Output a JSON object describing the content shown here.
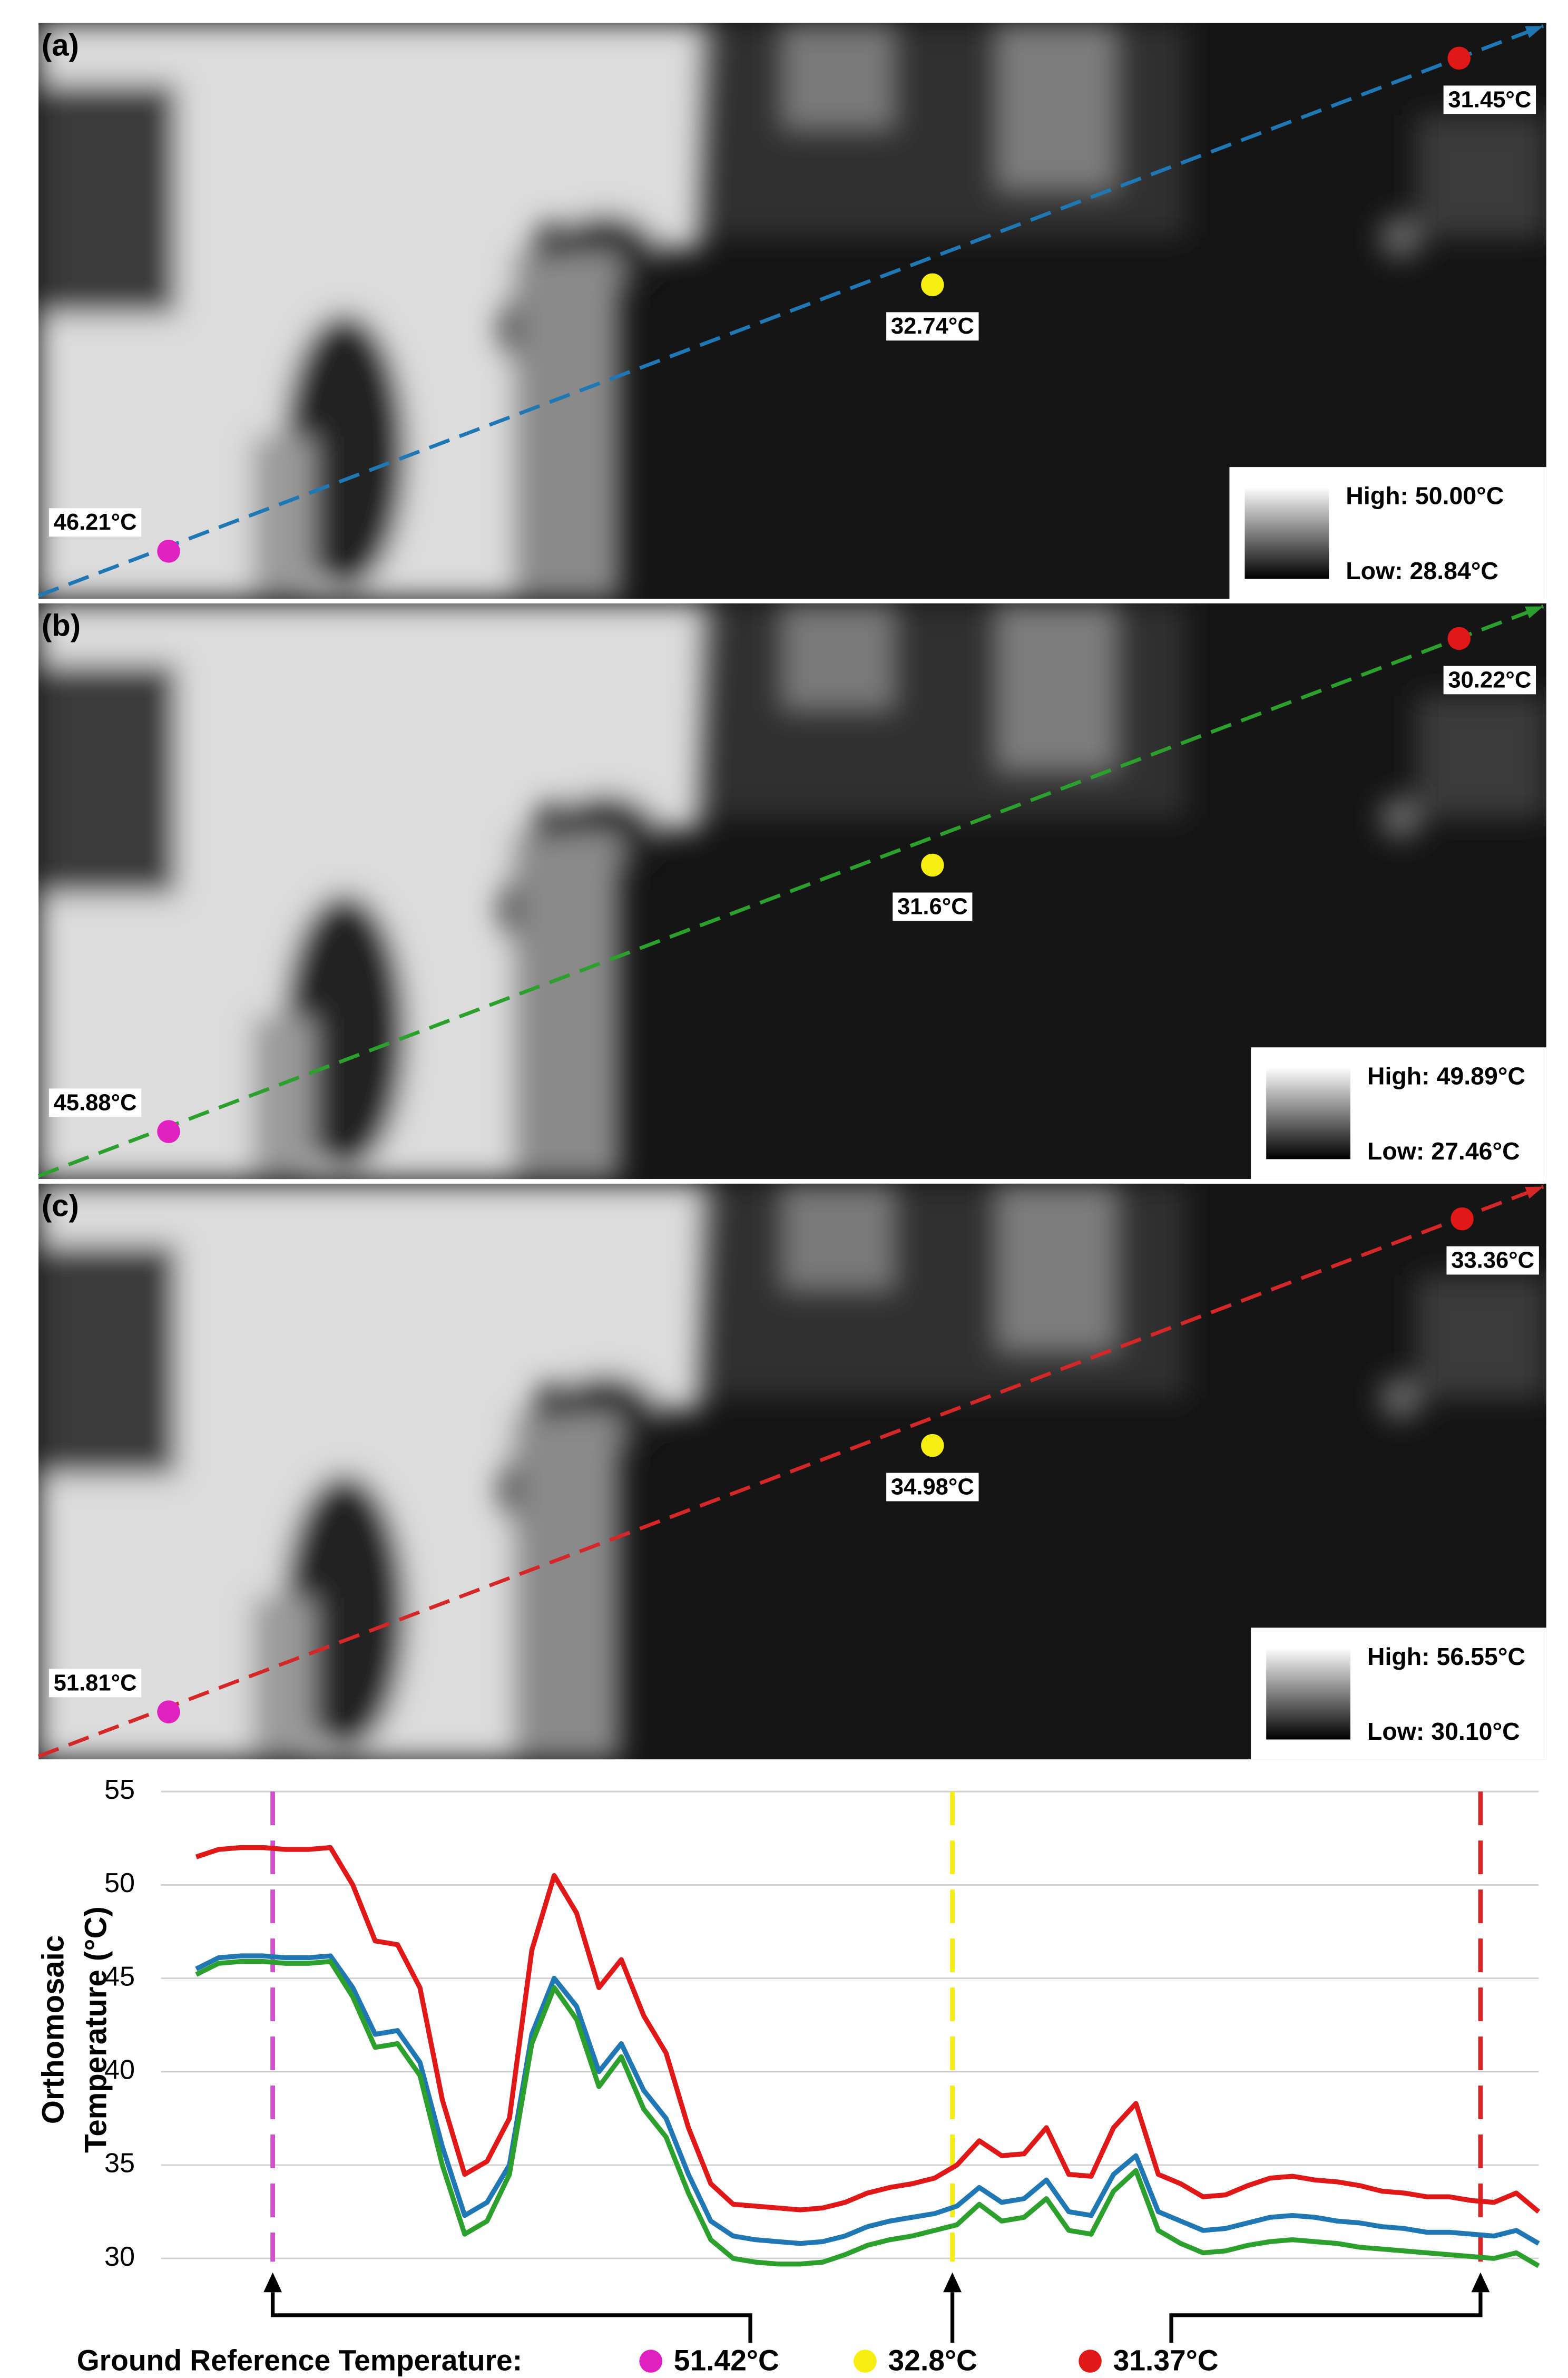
{
  "panels": [
    {
      "label": "(a)",
      "line_color": "#1f77b4",
      "points": [
        {
          "color": "#e020c0",
          "label": "46.21°C"
        },
        {
          "color": "#f5ee10",
          "label": "32.74°C"
        },
        {
          "color": "#e01818",
          "label": "31.45°C"
        }
      ],
      "high": "High: 50.00°C",
      "low": "Low: 28.84°C"
    },
    {
      "label": "(b)",
      "line_color": "#2ca02c",
      "points": [
        {
          "color": "#e020c0",
          "label": "45.88°C"
        },
        {
          "color": "#f5ee10",
          "label": "31.6°C"
        },
        {
          "color": "#e01818",
          "label": "30.22°C"
        }
      ],
      "high": "High: 49.89°C",
      "low": "Low: 27.46°C"
    },
    {
      "label": "(c)",
      "line_color": "#d62728",
      "points": [
        {
          "color": "#e020c0",
          "label": "51.81°C"
        },
        {
          "color": "#f5ee10",
          "label": "34.98°C"
        },
        {
          "color": "#e01818",
          "label": "33.36°C"
        }
      ],
      "high": "High: 56.55°C",
      "low": "Low: 30.10°C"
    }
  ],
  "chart_data": {
    "type": "line",
    "ylabel": [
      "Orthomosaic",
      "Temperature (°C)"
    ],
    "ylim": [
      29.5,
      55
    ],
    "yticks": [
      30,
      35,
      40,
      45,
      50,
      55
    ],
    "grid": true,
    "series": [
      {
        "color": "#e01818",
        "values": [
          51.5,
          51.9,
          52,
          52,
          51.9,
          51.9,
          52,
          50,
          47,
          46.8,
          44.5,
          38.5,
          34.5,
          35.2,
          37.5,
          46.5,
          50.5,
          48.5,
          44.5,
          46,
          43,
          41,
          37,
          34,
          32.9,
          32.8,
          32.7,
          32.6,
          32.7,
          33,
          33.5,
          33.8,
          34,
          34.3,
          35,
          36.3,
          35.5,
          35.6,
          37,
          34.5,
          34.4,
          37,
          38.3,
          34.5,
          34,
          33.3,
          33.4,
          33.9,
          34.3,
          34.4,
          34.2,
          34.1,
          33.9,
          33.6,
          33.5,
          33.3,
          33.3,
          33.1,
          33,
          33.5,
          32.5
        ]
      },
      {
        "color": "#1f77b4",
        "values": [
          45.5,
          46.1,
          46.2,
          46.2,
          46.1,
          46.1,
          46.2,
          44.5,
          42,
          42.2,
          40.5,
          36,
          32.3,
          33,
          35,
          42,
          45,
          43.5,
          40,
          41.5,
          39,
          37.5,
          34.5,
          32,
          31.2,
          31,
          30.9,
          30.8,
          30.9,
          31.2,
          31.7,
          32,
          32.2,
          32.4,
          32.8,
          33.8,
          33,
          33.2,
          34.2,
          32.5,
          32.3,
          34.5,
          35.5,
          32.5,
          32,
          31.5,
          31.6,
          31.9,
          32.2,
          32.3,
          32.2,
          32,
          31.9,
          31.7,
          31.6,
          31.4,
          31.4,
          31.3,
          31.2,
          31.5,
          30.8
        ]
      },
      {
        "color": "#2ca02c",
        "values": [
          45.2,
          45.8,
          45.9,
          45.9,
          45.8,
          45.8,
          45.9,
          44,
          41.3,
          41.5,
          39.8,
          35,
          31.3,
          32,
          34.5,
          41.5,
          44.5,
          42.8,
          39.2,
          40.8,
          38,
          36.5,
          33.5,
          31,
          30,
          29.8,
          29.7,
          29.7,
          29.8,
          30.2,
          30.7,
          31,
          31.2,
          31.5,
          31.8,
          32.9,
          32,
          32.2,
          33.2,
          31.5,
          31.3,
          33.6,
          34.7,
          31.5,
          30.8,
          30.3,
          30.4,
          30.7,
          30.9,
          31,
          30.9,
          30.8,
          30.6,
          30.5,
          30.4,
          30.3,
          30.2,
          30.1,
          30,
          30.3,
          29.6
        ]
      }
    ]
  },
  "ground_reference": {
    "label": "Ground Reference Temperature:",
    "items": [
      {
        "color": "#e020c0",
        "label": "51.42°C"
      },
      {
        "color": "#f5ee10",
        "label": "32.8°C"
      },
      {
        "color": "#e01818",
        "label": "31.37°C"
      }
    ]
  }
}
